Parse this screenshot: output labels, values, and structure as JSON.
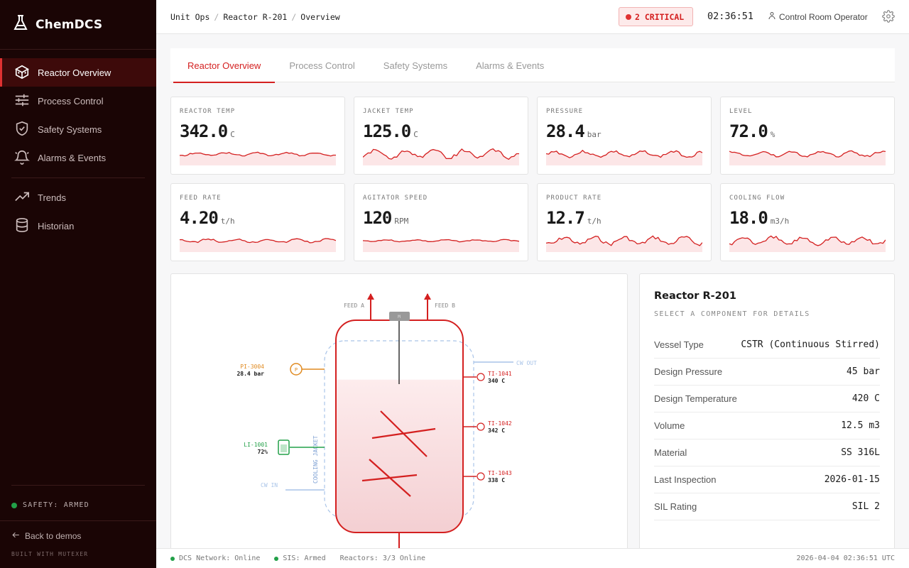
{
  "app": {
    "name": "ChemDCS"
  },
  "sidebar": {
    "items": [
      {
        "label": "Reactor Overview",
        "icon": "reactor-icon",
        "active": true
      },
      {
        "label": "Process Control",
        "icon": "sliders-icon"
      },
      {
        "label": "Safety Systems",
        "icon": "shield-icon"
      },
      {
        "label": "Alarms & Events",
        "icon": "bell-icon"
      }
    ],
    "items2": [
      {
        "label": "Trends",
        "icon": "trend-icon"
      },
      {
        "label": "Historian",
        "icon": "database-icon"
      }
    ],
    "safety_status": "SAFETY: ARMED",
    "back_label": "Back to demos",
    "built_with": "BUILT WITH MUTEXER"
  },
  "header": {
    "breadcrumb": [
      "Unit Ops",
      "Reactor R-201",
      "Overview"
    ],
    "critical": "2 CRITICAL",
    "clock": "02:36:51",
    "user": "Control Room Operator"
  },
  "tabs": [
    "Reactor Overview",
    "Process Control",
    "Safety Systems",
    "Alarms & Events"
  ],
  "kpis": [
    {
      "label": "REACTOR TEMP",
      "value": "342.0",
      "unit": "C"
    },
    {
      "label": "JACKET TEMP",
      "value": "125.0",
      "unit": "C"
    },
    {
      "label": "PRESSURE",
      "value": "28.4",
      "unit": "bar"
    },
    {
      "label": "LEVEL",
      "value": "72.0",
      "unit": "%"
    },
    {
      "label": "FEED RATE",
      "value": "4.20",
      "unit": "t/h"
    },
    {
      "label": "AGITATOR SPEED",
      "value": "120",
      "unit": "RPM"
    },
    {
      "label": "PRODUCT RATE",
      "value": "12.7",
      "unit": "t/h"
    },
    {
      "label": "COOLING FLOW",
      "value": "18.0",
      "unit": "m3/h"
    }
  ],
  "pid": {
    "feed_a": "FEED A",
    "feed_b": "FEED B",
    "motor": "M",
    "cw_out": "CW OUT",
    "cw_in": "CW IN",
    "jacket": "COOLING JACKET",
    "pressure_tag": "PI-3004",
    "pressure_val": "28.4 bar",
    "level_tag": "LI-1001",
    "level_val": "72%",
    "t1_tag": "TI-1041",
    "t1_val": "340 C",
    "t2_tag": "TI-1042",
    "t2_val": "342 C",
    "t3_tag": "TI-1043",
    "t3_val": "338 C",
    "p_glyph": "P",
    "level_fraction": 0.72
  },
  "detail": {
    "title": "Reactor R-201",
    "subtitle": "SELECT A COMPONENT FOR DETAILS",
    "rows": [
      {
        "k": "Vessel Type",
        "v": "CSTR (Continuous Stirred)"
      },
      {
        "k": "Design Pressure",
        "v": "45 bar"
      },
      {
        "k": "Design Temperature",
        "v": "420 C"
      },
      {
        "k": "Volume",
        "v": "12.5 m3"
      },
      {
        "k": "Material",
        "v": "SS 316L"
      },
      {
        "k": "Last Inspection",
        "v": "2026-01-15"
      },
      {
        "k": "SIL Rating",
        "v": "SIL 2"
      }
    ]
  },
  "status": {
    "dcs": "DCS Network: Online",
    "sis": "SIS: Armed",
    "reactors": "Reactors: 3/3 Online",
    "timestamp": "2026-04-04 02:36:51 UTC"
  },
  "colors": {
    "accent": "#d42020",
    "online": "#22a048",
    "sidebar_bg": "#1a0505"
  }
}
